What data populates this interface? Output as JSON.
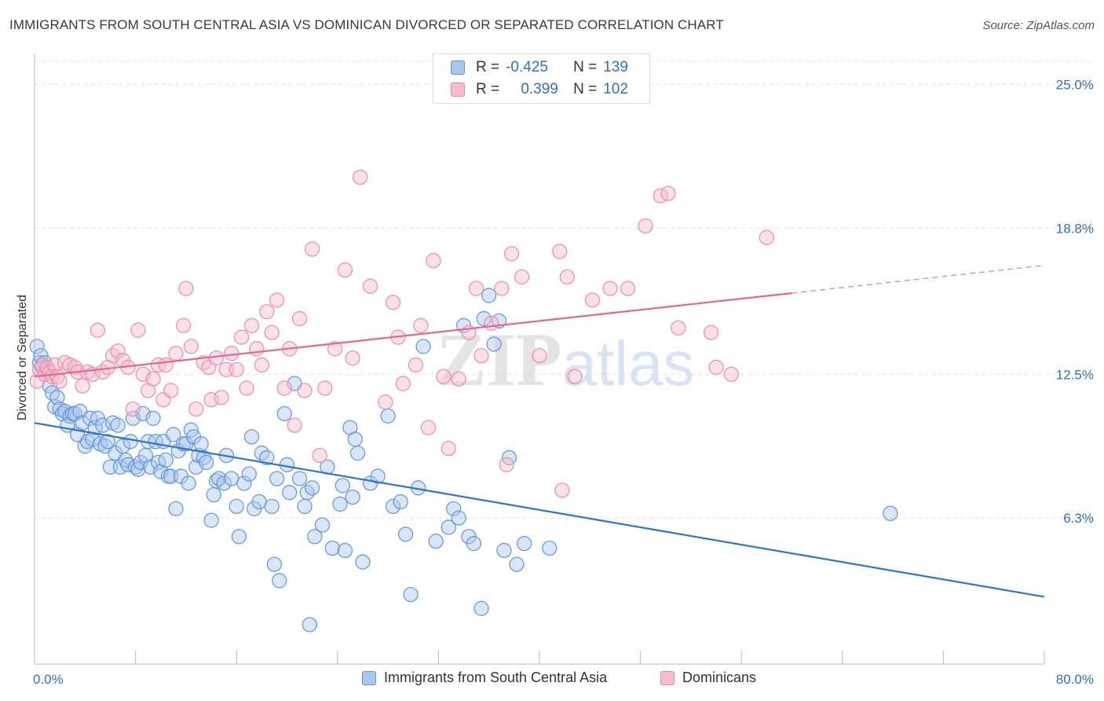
{
  "title": "IMMIGRANTS FROM SOUTH CENTRAL ASIA VS DOMINICAN DIVORCED OR SEPARATED CORRELATION CHART",
  "source": "Source: ZipAtlas.com",
  "watermark": "ZIPatlas",
  "legend": {
    "rows": [
      {
        "r_label": "R =",
        "r_value": "-0.425",
        "n_label": "N =",
        "n_value": "139"
      },
      {
        "r_label": "R =",
        "r_value": "0.399",
        "n_label": "N =",
        "n_value": "102"
      }
    ]
  },
  "bottom_legend": {
    "series1": "Immigrants from South Central Asia",
    "series2": "Dominicans"
  },
  "colors": {
    "blue_fill": "#aac8ee",
    "blue_stroke": "#5b93dc",
    "blue_line": "#2f74d4",
    "pink_fill": "#f6bccd",
    "pink_stroke": "#eb88a8",
    "pink_line": "#e56690",
    "axis_text": "#2e6fd0",
    "grid": "#e3e3e3"
  },
  "chart_data": {
    "type": "scatter",
    "title": "IMMIGRANTS FROM SOUTH CENTRAL ASIA VS DOMINICAN DIVORCED OR SEPARATED CORRELATION CHART",
    "xlabel": "",
    "ylabel": "Divorced or Separated",
    "xlim": [
      0,
      80
    ],
    "ylim": [
      0,
      26
    ],
    "x_tick_labels": [
      "0.0%",
      "80.0%"
    ],
    "y_ticks": [
      6.3,
      12.5,
      18.8,
      25.0
    ],
    "y_tick_labels": [
      "6.3%",
      "12.5%",
      "18.8%",
      "25.0%"
    ],
    "grid": true,
    "legend_position": "top-center",
    "series": [
      {
        "name": "Immigrants from South Central Asia",
        "r": -0.425,
        "n": 139,
        "trend": {
          "x": [
            0,
            80
          ],
          "y": [
            10.4,
            2.9
          ]
        },
        "points": [
          [
            0.2,
            13.7
          ],
          [
            0.4,
            13.0
          ],
          [
            0.5,
            13.3
          ],
          [
            0.6,
            12.8
          ],
          [
            0.8,
            13.0
          ],
          [
            1.0,
            12.7
          ],
          [
            1.2,
            12.0
          ],
          [
            1.4,
            11.7
          ],
          [
            1.6,
            11.1
          ],
          [
            1.8,
            11.5
          ],
          [
            2.0,
            11.0
          ],
          [
            2.2,
            10.8
          ],
          [
            2.4,
            10.9
          ],
          [
            2.6,
            10.3
          ],
          [
            2.8,
            10.7
          ],
          [
            3.0,
            10.8
          ],
          [
            3.2,
            10.8
          ],
          [
            3.4,
            9.9
          ],
          [
            3.6,
            10.9
          ],
          [
            3.8,
            10.4
          ],
          [
            4.0,
            9.4
          ],
          [
            4.2,
            9.6
          ],
          [
            4.4,
            10.6
          ],
          [
            4.6,
            9.7
          ],
          [
            4.8,
            10.2
          ],
          [
            5.0,
            10.6
          ],
          [
            5.2,
            9.5
          ],
          [
            5.4,
            10.3
          ],
          [
            5.6,
            9.4
          ],
          [
            5.8,
            9.6
          ],
          [
            6.0,
            8.5
          ],
          [
            6.2,
            10.4
          ],
          [
            6.4,
            9.1
          ],
          [
            6.6,
            10.3
          ],
          [
            6.8,
            8.5
          ],
          [
            7.0,
            9.4
          ],
          [
            7.2,
            8.8
          ],
          [
            7.4,
            8.6
          ],
          [
            7.6,
            9.6
          ],
          [
            7.8,
            10.6
          ],
          [
            8.0,
            8.5
          ],
          [
            8.2,
            8.4
          ],
          [
            8.4,
            8.7
          ],
          [
            8.6,
            10.8
          ],
          [
            8.8,
            9.0
          ],
          [
            9.0,
            9.6
          ],
          [
            9.2,
            8.5
          ],
          [
            9.4,
            10.6
          ],
          [
            9.6,
            9.6
          ],
          [
            9.8,
            8.7
          ],
          [
            10.0,
            8.3
          ],
          [
            10.2,
            9.6
          ],
          [
            10.4,
            8.8
          ],
          [
            10.6,
            8.1
          ],
          [
            10.8,
            8.1
          ],
          [
            11.0,
            9.9
          ],
          [
            11.2,
            6.7
          ],
          [
            11.4,
            9.2
          ],
          [
            11.6,
            8.1
          ],
          [
            11.8,
            9.5
          ],
          [
            12.0,
            9.5
          ],
          [
            12.2,
            7.8
          ],
          [
            12.4,
            10.1
          ],
          [
            12.6,
            9.8
          ],
          [
            12.8,
            8.5
          ],
          [
            13.0,
            9.0
          ],
          [
            13.2,
            9.5
          ],
          [
            13.4,
            8.9
          ],
          [
            13.6,
            8.7
          ],
          [
            14.0,
            6.2
          ],
          [
            14.2,
            7.3
          ],
          [
            14.4,
            7.9
          ],
          [
            14.6,
            8.0
          ],
          [
            15.0,
            7.8
          ],
          [
            15.2,
            9.0
          ],
          [
            15.6,
            8.0
          ],
          [
            16.0,
            6.8
          ],
          [
            16.2,
            5.5
          ],
          [
            16.6,
            7.8
          ],
          [
            17.0,
            8.2
          ],
          [
            17.2,
            9.8
          ],
          [
            17.4,
            6.7
          ],
          [
            17.8,
            7.0
          ],
          [
            18.0,
            9.1
          ],
          [
            18.4,
            8.9
          ],
          [
            18.8,
            6.8
          ],
          [
            19.0,
            4.3
          ],
          [
            19.2,
            8.0
          ],
          [
            19.4,
            3.6
          ],
          [
            19.8,
            10.8
          ],
          [
            20.0,
            8.6
          ],
          [
            20.2,
            7.4
          ],
          [
            20.6,
            12.1
          ],
          [
            21.0,
            8.0
          ],
          [
            21.4,
            6.8
          ],
          [
            21.6,
            7.4
          ],
          [
            21.8,
            1.7
          ],
          [
            22.0,
            7.6
          ],
          [
            22.2,
            5.5
          ],
          [
            22.8,
            6.0
          ],
          [
            23.2,
            8.5
          ],
          [
            23.6,
            5.0
          ],
          [
            24.2,
            6.9
          ],
          [
            24.4,
            7.7
          ],
          [
            24.6,
            4.9
          ],
          [
            25.0,
            10.2
          ],
          [
            25.2,
            7.2
          ],
          [
            25.4,
            9.7
          ],
          [
            25.6,
            9.1
          ],
          [
            26.0,
            4.4
          ],
          [
            26.6,
            7.8
          ],
          [
            27.2,
            8.1
          ],
          [
            28.0,
            10.7
          ],
          [
            28.4,
            6.8
          ],
          [
            29.0,
            7.0
          ],
          [
            29.4,
            5.6
          ],
          [
            29.8,
            3.0
          ],
          [
            30.4,
            7.6
          ],
          [
            30.8,
            13.7
          ],
          [
            31.8,
            5.3
          ],
          [
            32.8,
            5.9
          ],
          [
            33.2,
            6.7
          ],
          [
            33.6,
            6.3
          ],
          [
            34.0,
            14.6
          ],
          [
            34.4,
            5.5
          ],
          [
            34.8,
            5.2
          ],
          [
            35.4,
            2.4
          ],
          [
            35.6,
            14.9
          ],
          [
            36.0,
            15.9
          ],
          [
            36.4,
            13.8
          ],
          [
            36.8,
            14.8
          ],
          [
            37.2,
            4.9
          ],
          [
            37.6,
            8.9
          ],
          [
            38.2,
            4.3
          ],
          [
            38.8,
            5.2
          ],
          [
            40.8,
            5.0
          ],
          [
            67.8,
            6.5
          ]
        ]
      },
      {
        "name": "Dominicans",
        "r": 0.399,
        "n": 102,
        "trend": {
          "x": [
            0,
            60
          ],
          "y": [
            12.4,
            16.0
          ]
        },
        "trend_dashed_extension": {
          "x": [
            60,
            80
          ],
          "y": [
            16.0,
            17.2
          ]
        },
        "points": [
          [
            0.2,
            12.2
          ],
          [
            0.4,
            12.7
          ],
          [
            0.6,
            12.9
          ],
          [
            0.8,
            12.5
          ],
          [
            1.0,
            12.8
          ],
          [
            1.2,
            12.6
          ],
          [
            1.4,
            12.4
          ],
          [
            1.6,
            12.9
          ],
          [
            1.8,
            12.4
          ],
          [
            2.0,
            12.2
          ],
          [
            2.4,
            13.0
          ],
          [
            2.8,
            12.9
          ],
          [
            3.2,
            12.8
          ],
          [
            3.4,
            12.6
          ],
          [
            3.8,
            12.0
          ],
          [
            4.2,
            12.6
          ],
          [
            4.6,
            12.5
          ],
          [
            5.0,
            14.4
          ],
          [
            5.4,
            12.6
          ],
          [
            5.8,
            12.8
          ],
          [
            6.2,
            13.3
          ],
          [
            6.6,
            13.5
          ],
          [
            7.0,
            13.1
          ],
          [
            7.4,
            12.8
          ],
          [
            7.8,
            11.0
          ],
          [
            8.2,
            14.4
          ],
          [
            8.6,
            12.5
          ],
          [
            9.0,
            11.8
          ],
          [
            9.4,
            12.3
          ],
          [
            9.8,
            12.9
          ],
          [
            10.2,
            11.4
          ],
          [
            10.4,
            12.9
          ],
          [
            10.8,
            11.8
          ],
          [
            11.2,
            13.4
          ],
          [
            11.8,
            14.6
          ],
          [
            12.0,
            16.2
          ],
          [
            12.4,
            13.7
          ],
          [
            12.8,
            11.0
          ],
          [
            13.4,
            13.0
          ],
          [
            13.8,
            12.8
          ],
          [
            14.0,
            11.4
          ],
          [
            14.4,
            13.2
          ],
          [
            14.8,
            11.5
          ],
          [
            15.2,
            12.7
          ],
          [
            15.6,
            13.4
          ],
          [
            16.0,
            12.7
          ],
          [
            16.4,
            14.1
          ],
          [
            16.8,
            11.9
          ],
          [
            17.2,
            14.6
          ],
          [
            17.6,
            13.6
          ],
          [
            18.0,
            12.9
          ],
          [
            18.4,
            15.2
          ],
          [
            18.8,
            14.3
          ],
          [
            19.2,
            15.7
          ],
          [
            19.8,
            11.9
          ],
          [
            20.2,
            13.6
          ],
          [
            20.6,
            10.3
          ],
          [
            21.0,
            14.9
          ],
          [
            21.4,
            11.8
          ],
          [
            22.0,
            17.9
          ],
          [
            22.6,
            9.0
          ],
          [
            23.0,
            11.9
          ],
          [
            23.8,
            13.6
          ],
          [
            24.6,
            17.0
          ],
          [
            25.2,
            13.2
          ],
          [
            25.8,
            21.0
          ],
          [
            26.6,
            16.3
          ],
          [
            27.8,
            11.3
          ],
          [
            28.4,
            15.6
          ],
          [
            28.8,
            14.1
          ],
          [
            29.2,
            12.1
          ],
          [
            30.2,
            12.9
          ],
          [
            30.6,
            14.6
          ],
          [
            31.2,
            10.2
          ],
          [
            31.6,
            17.4
          ],
          [
            32.4,
            12.4
          ],
          [
            32.8,
            9.3
          ],
          [
            33.6,
            12.3
          ],
          [
            34.4,
            14.3
          ],
          [
            35.0,
            16.2
          ],
          [
            35.4,
            13.3
          ],
          [
            36.2,
            14.7
          ],
          [
            37.0,
            16.2
          ],
          [
            37.4,
            8.6
          ],
          [
            37.8,
            17.7
          ],
          [
            38.6,
            16.7
          ],
          [
            40.0,
            13.3
          ],
          [
            41.6,
            17.8
          ],
          [
            41.8,
            7.5
          ],
          [
            42.2,
            16.7
          ],
          [
            42.8,
            12.4
          ],
          [
            44.2,
            15.7
          ],
          [
            45.6,
            16.2
          ],
          [
            47.0,
            16.2
          ],
          [
            48.4,
            18.9
          ],
          [
            49.6,
            20.2
          ],
          [
            50.2,
            20.3
          ],
          [
            51.0,
            14.5
          ],
          [
            53.6,
            14.3
          ],
          [
            54.0,
            12.8
          ],
          [
            55.2,
            12.5
          ],
          [
            58.0,
            18.4
          ]
        ]
      }
    ]
  }
}
